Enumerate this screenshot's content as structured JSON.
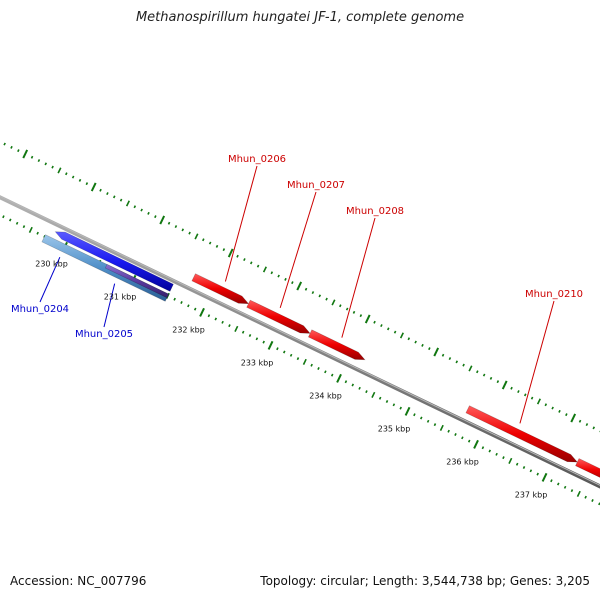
{
  "title": "Methanospirillum hungatei JF-1, complete genome",
  "footer": {
    "accession_label": "Accession:",
    "accession": "NC_007796",
    "topology_label": "Topology:",
    "topology": "circular",
    "length_label": "Length:",
    "length": "3,544,738 bp",
    "genes_label": "Genes:",
    "genes": "3,205"
  },
  "colors": {
    "forward_gene": "#ee0000",
    "reverse_gene": "#1a1af0",
    "reverse_gene_light": "#4f8fc8",
    "reverse_gene_dark": "#5a3aa0",
    "tick": "#117711",
    "backbone": "#808080",
    "forward_label": "#cc0000",
    "reverse_label": "#0000cc"
  },
  "chart_data": {
    "type": "genome-map",
    "units": "kbp",
    "ticks": [
      {
        "position": 230,
        "label": "230 kbp"
      },
      {
        "position": 231,
        "label": "231 kbp"
      },
      {
        "position": 232,
        "label": "232 kbp"
      },
      {
        "position": 233,
        "label": "233 kbp"
      },
      {
        "position": 234,
        "label": "234 kbp"
      },
      {
        "position": 235,
        "label": "235 kbp"
      },
      {
        "position": 236,
        "label": "236 kbp"
      },
      {
        "position": 237,
        "label": "237 kbp"
      }
    ],
    "genes": [
      {
        "name": "Mhun_0204",
        "strand": "reverse",
        "start": 229.7,
        "end": 231.5
      },
      {
        "name": "Mhun_0205",
        "strand": "reverse",
        "start": 230.6,
        "end": 231.5
      },
      {
        "name": "",
        "strand": "reverse",
        "start": 229.8,
        "end": 231.5
      },
      {
        "name": "Mhun_0206",
        "strand": "forward",
        "start": 231.7,
        "end": 232.5
      },
      {
        "name": "Mhun_0207",
        "strand": "forward",
        "start": 232.5,
        "end": 233.4
      },
      {
        "name": "Mhun_0208",
        "strand": "forward",
        "start": 233.4,
        "end": 234.2
      },
      {
        "name": "Mhun_0210",
        "strand": "forward",
        "start": 235.7,
        "end": 237.3
      },
      {
        "name": "",
        "strand": "forward",
        "start": 237.3,
        "end": 237.9
      }
    ]
  }
}
